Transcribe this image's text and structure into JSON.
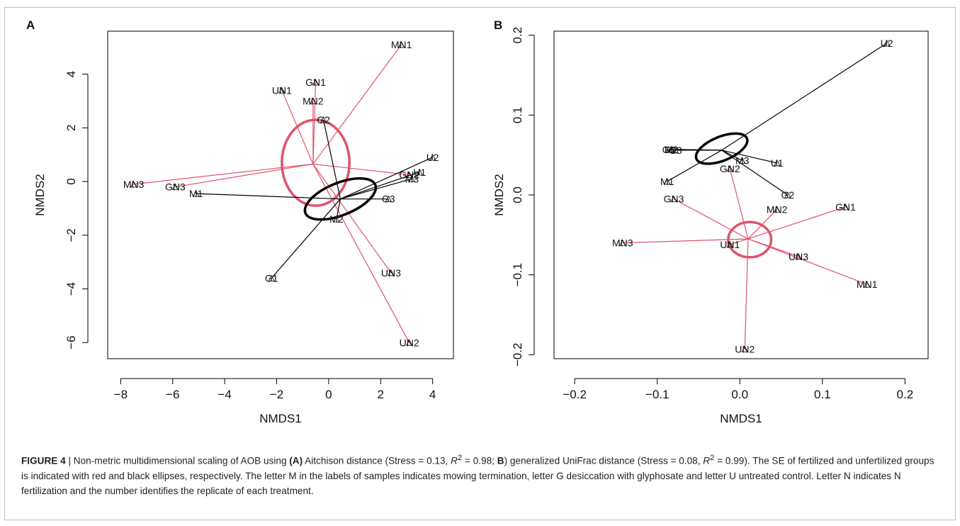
{
  "panels": [
    {
      "letter": "A",
      "chart_data": {
        "type": "scatter",
        "xlabel": "NMDS1",
        "ylabel": "NMDS2",
        "xlim": [
          -8.5,
          4.8
        ],
        "ylim": [
          -6.6,
          5.6
        ],
        "xticks": [
          -8,
          -6,
          -4,
          -2,
          0,
          2,
          4
        ],
        "yticks": [
          -6,
          -4,
          -2,
          0,
          2,
          4
        ],
        "tick_labels_x": [
          "−8",
          "−6",
          "−4",
          "−2",
          "0",
          "2",
          "4"
        ],
        "tick_labels_y": [
          "−6",
          "−4",
          "−2",
          "0",
          "2",
          "4"
        ],
        "groups": [
          {
            "color": "#df536b",
            "centroid": [
              -0.6,
              0.65
            ],
            "ellipse": {
              "center": [
                -0.5,
                0.7
              ],
              "rx": 1.3,
              "ry": 1.6,
              "stroke_width": 3.5
            },
            "points": [
              {
                "label": "MN1",
                "x": 2.8,
                "y": 5.1
              },
              {
                "label": "GN1",
                "x": -0.5,
                "y": 3.7
              },
              {
                "label": "UN1",
                "x": -1.8,
                "y": 3.4
              },
              {
                "label": "MN2",
                "x": -0.6,
                "y": 3.0
              },
              {
                "label": "MN3",
                "x": -7.5,
                "y": -0.1
              },
              {
                "label": "GN3",
                "x": -5.9,
                "y": -0.2
              },
              {
                "label": "GN2",
                "x": 3.1,
                "y": 0.25
              },
              {
                "label": "UN3",
                "x": 2.4,
                "y": -3.4
              },
              {
                "label": "UN2",
                "x": 3.1,
                "y": -6.0
              }
            ]
          },
          {
            "color": "#000000",
            "centroid": [
              0.45,
              -0.65
            ],
            "ellipse": {
              "center": [
                0.45,
                -0.65
              ],
              "rx": 1.45,
              "ry": 0.6,
              "rotation": -22,
              "stroke_width": 3.5
            },
            "points": [
              {
                "label": "G2",
                "x": -0.2,
                "y": 2.3
              },
              {
                "label": "U2",
                "x": 4.0,
                "y": 0.9
              },
              {
                "label": "U1",
                "x": 3.5,
                "y": 0.35
              },
              {
                "label": "M3",
                "x": 3.2,
                "y": 0.1
              },
              {
                "label": "M1",
                "x": -5.1,
                "y": -0.45
              },
              {
                "label": "G3",
                "x": 2.3,
                "y": -0.65
              },
              {
                "label": "M2",
                "x": 0.3,
                "y": -1.4
              },
              {
                "label": "G1",
                "x": -2.2,
                "y": -3.6
              }
            ]
          }
        ]
      }
    },
    {
      "letter": "B",
      "chart_data": {
        "type": "scatter",
        "xlabel": "NMDS1",
        "ylabel": "NMDS2",
        "xlim": [
          -0.225,
          0.228
        ],
        "ylim": [
          -0.205,
          0.205
        ],
        "xticks": [
          -0.2,
          -0.1,
          0.0,
          0.1,
          0.2
        ],
        "yticks": [
          -0.2,
          -0.1,
          0.0,
          0.1,
          0.2
        ],
        "tick_labels_x": [
          "−0.2",
          "−0.1",
          "0.0",
          "0.1",
          "0.2"
        ],
        "tick_labels_y": [
          "−0.2",
          "−0.1",
          "0.0",
          "0.1",
          "0.2"
        ],
        "groups": [
          {
            "color": "#df536b",
            "centroid": [
              0.01,
              -0.055
            ],
            "ellipse": {
              "center": [
                0.012,
                -0.056
              ],
              "rx": 0.026,
              "ry": 0.022,
              "stroke_width": 3.5
            },
            "points": [
              {
                "label": "GN3",
                "x": -0.08,
                "y": -0.005
              },
              {
                "label": "GN2",
                "x": -0.012,
                "y": 0.033
              },
              {
                "label": "MN2",
                "x": 0.045,
                "y": -0.018
              },
              {
                "label": "GN1",
                "x": 0.128,
                "y": -0.015
              },
              {
                "label": "MN3",
                "x": -0.142,
                "y": -0.06
              },
              {
                "label": "UN1",
                "x": -0.012,
                "y": -0.062
              },
              {
                "label": "UN3",
                "x": 0.071,
                "y": -0.077
              },
              {
                "label": "MN1",
                "x": 0.154,
                "y": -0.112
              },
              {
                "label": "UN2",
                "x": 0.006,
                "y": -0.193
              }
            ]
          },
          {
            "color": "#000000",
            "centroid": [
              -0.022,
              0.056
            ],
            "ellipse": {
              "center": [
                -0.022,
                0.058
              ],
              "rx": 0.033,
              "ry": 0.015,
              "rotation": -22,
              "stroke_width": 3.5
            },
            "points": [
              {
                "label": "U2",
                "x": 0.178,
                "y": 0.19
              },
              {
                "label": "G1",
                "x": -0.086,
                "y": 0.057
              },
              {
                "label": "M2",
                "x": -0.083,
                "y": 0.057
              },
              {
                "label": "G3",
                "x": -0.078,
                "y": 0.056
              },
              {
                "label": "M3",
                "x": 0.003,
                "y": 0.043
              },
              {
                "label": "U1",
                "x": 0.045,
                "y": 0.04
              },
              {
                "label": "M1",
                "x": -0.088,
                "y": 0.017
              },
              {
                "label": "G2",
                "x": 0.058,
                "y": 0.0
              }
            ]
          }
        ]
      }
    }
  ],
  "caption": {
    "fig_label": "FIGURE 4",
    "sep": " | ",
    "t1": "Non-metric multidimensional scaling of AOB using ",
    "a_label": "(A)",
    "t2": " Aitchison distance (Stress = 0.13, ",
    "r2_a": "R",
    "t3": " = 0.98; ",
    "b_label": "B",
    "t4": ") generalized UniFrac distance (Stress = 0.08, ",
    "r2_b": "R",
    "t5": " = 0.99). The SE of fertilized and unfertilized groups is indicated with red and black ellipses, respectively. The letter M in the labels of samples indicates mowing termination, letter G desiccation with glyphosate and letter U untreated control. Letter N indicates N fertilization and the number identifies the replicate of each treatment.",
    "sup": "2"
  }
}
